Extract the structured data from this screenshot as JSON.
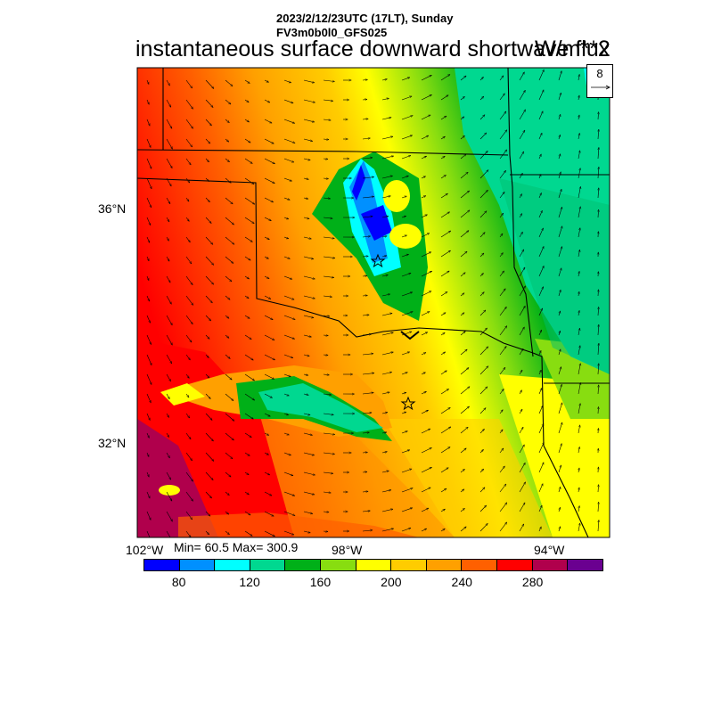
{
  "header": {
    "date_line": "2023/2/12/23UTC (17LT), Sunday",
    "model_line": "FV3m0b0l0_GFS025",
    "main_title": "instantaneous surface downward shortwave flux",
    "unit_title": "W/m**2"
  },
  "map": {
    "lat_labels": [
      "36°N",
      "32°N"
    ],
    "lon_labels": [
      "102°W",
      "98°W",
      "94°W"
    ],
    "minmax": "Min= 60.5 Max= 300.9",
    "vector_key_label": "8",
    "markers": [
      "star",
      "star"
    ]
  },
  "colorbar": {
    "colors": [
      "#0000ff",
      "#0090ff",
      "#00ffff",
      "#00d890",
      "#00b018",
      "#88dd10",
      "#ffff00",
      "#ffcc00",
      "#ffa000",
      "#ff6000",
      "#ff0000",
      "#b0004c",
      "#6a0090"
    ],
    "labels": [
      "80",
      "120",
      "160",
      "200",
      "240",
      "280"
    ]
  }
}
